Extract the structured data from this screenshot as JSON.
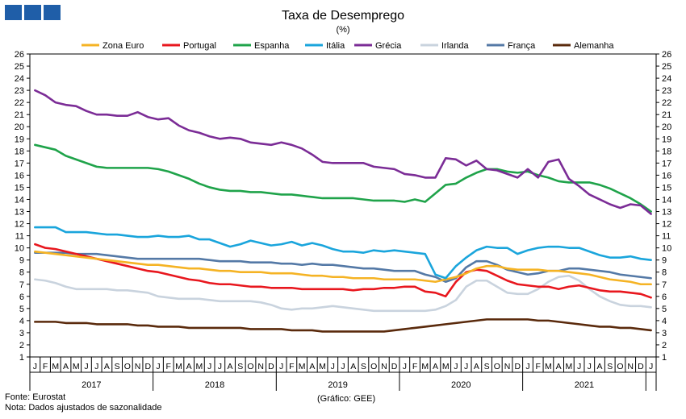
{
  "chart_data": {
    "type": "line",
    "title": "Taxa de Desemprego",
    "subtitle": "(%)",
    "ylim": [
      1,
      26
    ],
    "yticks": [
      1,
      2,
      3,
      4,
      5,
      6,
      7,
      8,
      9,
      10,
      11,
      12,
      13,
      14,
      15,
      16,
      17,
      18,
      19,
      20,
      21,
      22,
      23,
      24,
      25,
      26
    ],
    "month_labels": [
      "J",
      "F",
      "M",
      "A",
      "M",
      "J",
      "J",
      "A",
      "S",
      "O",
      "N",
      "D"
    ],
    "years": [
      "2017",
      "2018",
      "2019",
      "2020",
      "2021"
    ],
    "grid": false,
    "legend_position": "top",
    "source": "Fonte: Eurostat",
    "note": "Nota: Dados ajustados de sazonalidade",
    "credit": "(Gráfico: GEE)",
    "series": [
      {
        "name": "Zona Euro",
        "color": "#f5b324",
        "values": [
          9.7,
          9.6,
          9.5,
          9.4,
          9.3,
          9.2,
          9.1,
          9.0,
          8.9,
          8.8,
          8.7,
          8.6,
          8.6,
          8.5,
          8.4,
          8.3,
          8.3,
          8.2,
          8.1,
          8.1,
          8.0,
          8.0,
          8.0,
          7.9,
          7.9,
          7.9,
          7.8,
          7.7,
          7.7,
          7.6,
          7.6,
          7.5,
          7.5,
          7.5,
          7.4,
          7.4,
          7.4,
          7.4,
          7.3,
          7.2,
          7.4,
          7.6,
          7.9,
          8.3,
          8.5,
          8.5,
          8.3,
          8.2,
          8.2,
          8.2,
          8.1,
          8.1,
          8.0,
          7.9,
          7.8,
          7.6,
          7.4,
          7.3,
          7.2,
          7.0,
          7.0
        ]
      },
      {
        "name": "Portugal",
        "color": "#e8171e",
        "values": [
          10.3,
          10.0,
          9.9,
          9.7,
          9.5,
          9.3,
          9.1,
          8.9,
          8.7,
          8.5,
          8.3,
          8.1,
          8.0,
          7.8,
          7.6,
          7.4,
          7.3,
          7.1,
          7.0,
          7.0,
          6.9,
          6.8,
          6.8,
          6.7,
          6.7,
          6.7,
          6.6,
          6.6,
          6.6,
          6.6,
          6.6,
          6.5,
          6.6,
          6.6,
          6.7,
          6.7,
          6.8,
          6.8,
          6.4,
          6.3,
          6.0,
          7.2,
          8.0,
          8.2,
          8.1,
          7.7,
          7.3,
          7.0,
          6.9,
          6.8,
          6.8,
          6.6,
          6.8,
          6.9,
          6.7,
          6.5,
          6.4,
          6.4,
          6.3,
          6.2,
          5.9
        ]
      },
      {
        "name": "Espanha",
        "color": "#1fa34a",
        "values": [
          18.5,
          18.3,
          18.1,
          17.6,
          17.3,
          17.0,
          16.7,
          16.6,
          16.6,
          16.6,
          16.6,
          16.6,
          16.5,
          16.3,
          16.0,
          15.7,
          15.3,
          15.0,
          14.8,
          14.7,
          14.7,
          14.6,
          14.6,
          14.5,
          14.4,
          14.4,
          14.3,
          14.2,
          14.1,
          14.1,
          14.1,
          14.1,
          14.0,
          13.9,
          13.9,
          13.9,
          13.8,
          14.0,
          13.8,
          14.5,
          15.2,
          15.3,
          15.8,
          16.2,
          16.5,
          16.5,
          16.3,
          16.2,
          16.3,
          16.0,
          15.8,
          15.5,
          15.4,
          15.4,
          15.4,
          15.2,
          14.9,
          14.5,
          14.1,
          13.6,
          13.0
        ]
      },
      {
        "name": "Itália",
        "color": "#1aa5dc",
        "values": [
          11.7,
          11.7,
          11.7,
          11.3,
          11.3,
          11.3,
          11.2,
          11.1,
          11.1,
          11.0,
          10.9,
          10.9,
          11.0,
          10.9,
          10.9,
          11.0,
          10.7,
          10.7,
          10.4,
          10.1,
          10.3,
          10.6,
          10.4,
          10.2,
          10.3,
          10.5,
          10.2,
          10.4,
          10.2,
          9.9,
          9.7,
          9.7,
          9.6,
          9.8,
          9.7,
          9.8,
          9.7,
          9.6,
          9.5,
          7.8,
          7.5,
          8.5,
          9.2,
          9.8,
          10.1,
          10.0,
          10.0,
          9.5,
          9.8,
          10.0,
          10.1,
          10.1,
          10.0,
          10.0,
          9.7,
          9.4,
          9.2,
          9.2,
          9.3,
          9.1,
          9.0
        ]
      },
      {
        "name": "Grécia",
        "color": "#7b2c96",
        "values": [
          23.0,
          22.6,
          22.0,
          21.8,
          21.7,
          21.3,
          21.0,
          21.0,
          20.9,
          20.9,
          21.2,
          20.8,
          20.6,
          20.7,
          20.1,
          19.7,
          19.5,
          19.2,
          19.0,
          19.1,
          19.0,
          18.7,
          18.6,
          18.5,
          18.7,
          18.5,
          18.2,
          17.7,
          17.1,
          17.0,
          17.0,
          17.0,
          17.0,
          16.7,
          16.6,
          16.5,
          16.1,
          16.0,
          15.8,
          15.8,
          17.4,
          17.3,
          16.8,
          17.2,
          16.5,
          16.4,
          16.1,
          15.8,
          16.5,
          15.8,
          17.1,
          17.3,
          15.7,
          15.1,
          14.4,
          14.0,
          13.6,
          13.3,
          13.6,
          13.5,
          12.8
        ]
      },
      {
        "name": "Irlanda",
        "color": "#c9d3de",
        "values": [
          7.4,
          7.3,
          7.1,
          6.8,
          6.6,
          6.6,
          6.6,
          6.6,
          6.5,
          6.5,
          6.4,
          6.3,
          6.0,
          5.9,
          5.8,
          5.8,
          5.8,
          5.7,
          5.6,
          5.6,
          5.6,
          5.6,
          5.5,
          5.3,
          5.0,
          4.9,
          5.0,
          5.0,
          5.1,
          5.2,
          5.1,
          5.0,
          4.9,
          4.8,
          4.8,
          4.8,
          4.8,
          4.8,
          4.8,
          4.9,
          5.2,
          5.7,
          6.8,
          7.3,
          7.3,
          6.8,
          6.3,
          6.2,
          6.2,
          6.6,
          7.2,
          7.6,
          7.7,
          7.3,
          6.6,
          6.0,
          5.6,
          5.3,
          5.2,
          5.2,
          5.1
        ]
      },
      {
        "name": "França",
        "color": "#5479a6",
        "values": [
          9.6,
          9.6,
          9.6,
          9.6,
          9.5,
          9.5,
          9.5,
          9.4,
          9.3,
          9.2,
          9.1,
          9.1,
          9.1,
          9.1,
          9.1,
          9.1,
          9.1,
          9.0,
          8.9,
          8.9,
          8.9,
          8.8,
          8.8,
          8.8,
          8.7,
          8.7,
          8.6,
          8.7,
          8.6,
          8.6,
          8.5,
          8.4,
          8.3,
          8.3,
          8.2,
          8.1,
          8.1,
          8.1,
          7.8,
          7.6,
          7.2,
          7.5,
          8.4,
          8.9,
          8.9,
          8.6,
          8.2,
          8.0,
          7.8,
          7.9,
          8.1,
          8.1,
          8.3,
          8.3,
          8.2,
          8.1,
          8.0,
          7.8,
          7.7,
          7.6,
          7.5
        ]
      },
      {
        "name": "Alemanha",
        "color": "#5a2a0c",
        "values": [
          3.9,
          3.9,
          3.9,
          3.8,
          3.8,
          3.8,
          3.7,
          3.7,
          3.7,
          3.7,
          3.6,
          3.6,
          3.5,
          3.5,
          3.5,
          3.4,
          3.4,
          3.4,
          3.4,
          3.4,
          3.4,
          3.3,
          3.3,
          3.3,
          3.3,
          3.2,
          3.2,
          3.2,
          3.1,
          3.1,
          3.1,
          3.1,
          3.1,
          3.1,
          3.1,
          3.2,
          3.3,
          3.4,
          3.5,
          3.6,
          3.7,
          3.8,
          3.9,
          4.0,
          4.1,
          4.1,
          4.1,
          4.1,
          4.1,
          4.0,
          4.0,
          3.9,
          3.8,
          3.7,
          3.6,
          3.5,
          3.5,
          3.4,
          3.4,
          3.3,
          3.2
        ]
      }
    ]
  }
}
